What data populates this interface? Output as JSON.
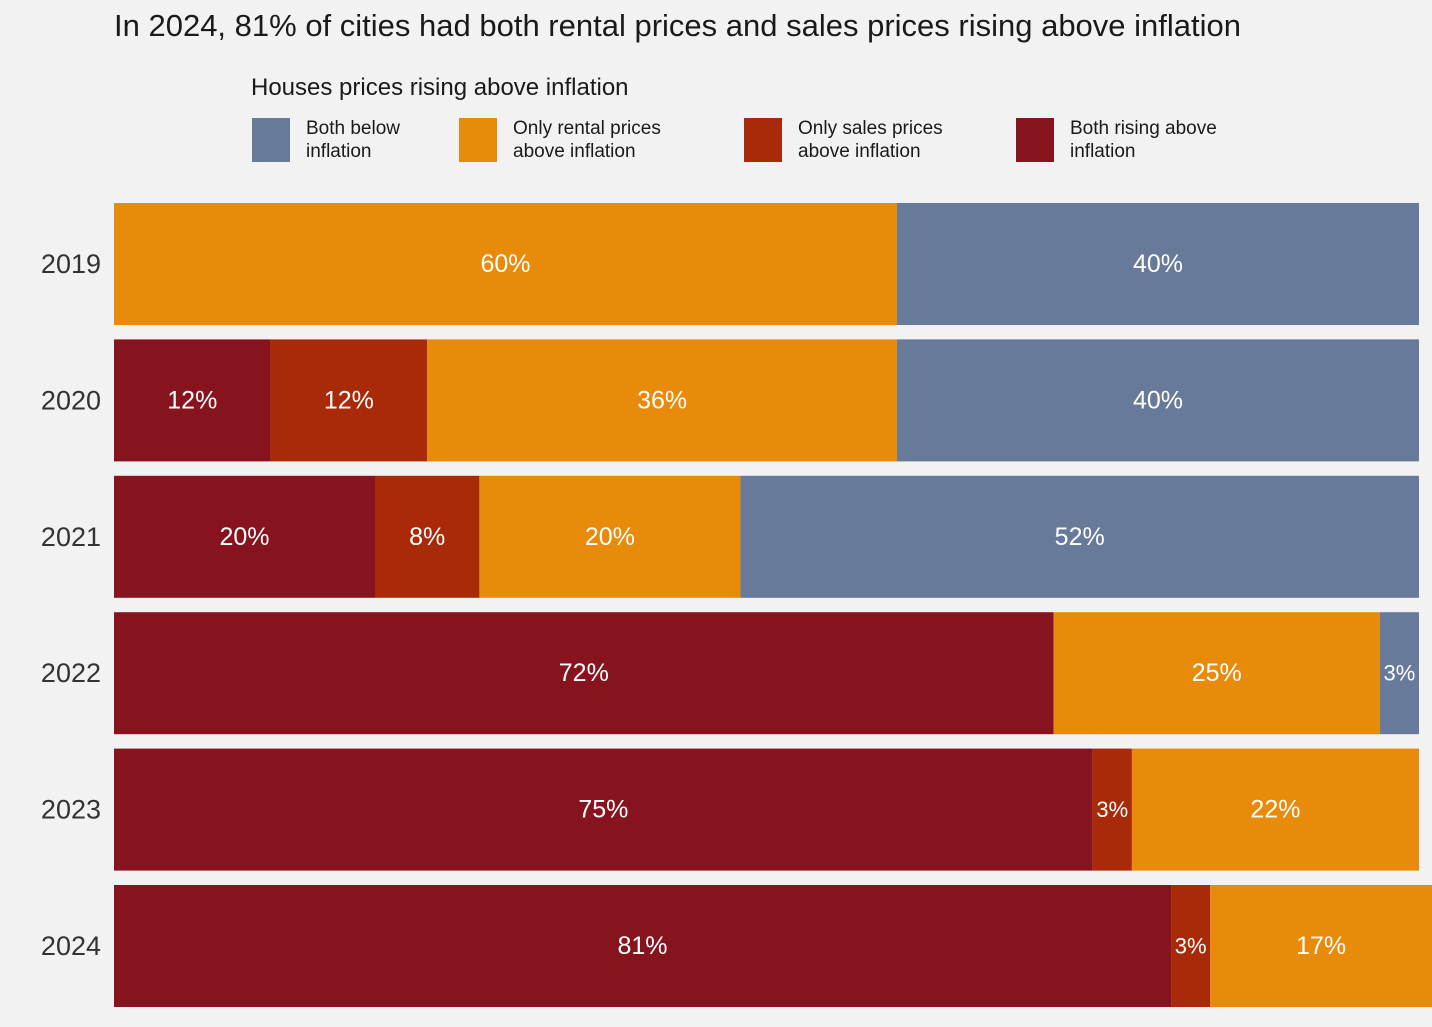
{
  "title": "In 2024, 81% of cities had both rental prices and sales prices rising above inflation",
  "legend": {
    "title": "Houses prices rising above inflation",
    "items": [
      {
        "key": "both_below",
        "line1": "Both below",
        "line2": "inflation",
        "color": "#677a99"
      },
      {
        "key": "only_rental",
        "line1": "Only rental prices",
        "line2": "above inflation",
        "color": "#e88a0a"
      },
      {
        "key": "only_sales",
        "line1": "Only sales prices",
        "line2": "above inflation",
        "color": "#a82a08"
      },
      {
        "key": "both_rising",
        "line1": "Both rising above",
        "line2": "inflation",
        "color": "#87131e"
      }
    ]
  },
  "chart_data": {
    "type": "bar",
    "orientation": "horizontal",
    "stacked": true,
    "title": "In 2024, 81% of cities had both rental prices and sales prices rising above inflation",
    "legend_title": "Houses prices rising above inflation",
    "legend_placement": "top",
    "categories": [
      "2019",
      "2020",
      "2021",
      "2022",
      "2023",
      "2024"
    ],
    "series": [
      {
        "name": "Both rising above inflation",
        "color": "#87131e",
        "values": [
          0,
          12,
          20,
          72,
          75,
          81
        ],
        "labels": [
          "",
          "12%",
          "20%",
          "72%",
          "75%",
          "81%"
        ]
      },
      {
        "name": "Only sales prices above inflation",
        "color": "#a82a08",
        "values": [
          0,
          12,
          8,
          0,
          3,
          3
        ],
        "labels": [
          "",
          "12%",
          "8%",
          "",
          "3%",
          "3%"
        ]
      },
      {
        "name": "Only rental prices above inflation",
        "color": "#e88a0a",
        "values": [
          60,
          36,
          20,
          25,
          22,
          17
        ],
        "labels": [
          "60%",
          "36%",
          "20%",
          "25%",
          "22%",
          "17%"
        ]
      },
      {
        "name": "Both below inflation",
        "color": "#677a99",
        "values": [
          40,
          40,
          52,
          3,
          0,
          0
        ],
        "labels": [
          "40%",
          "40%",
          "52%",
          "3%",
          "",
          ""
        ]
      }
    ],
    "xlim": [
      0,
      100
    ],
    "grid": false,
    "xaxis_visible": false
  }
}
